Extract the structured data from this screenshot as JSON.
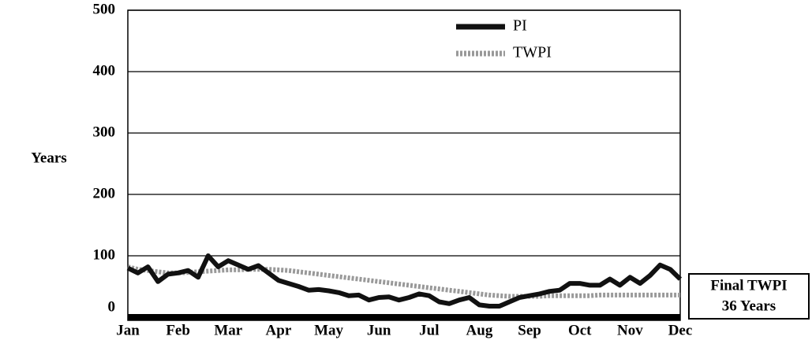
{
  "chart_data": {
    "type": "line",
    "ylabel": "Years",
    "x": [
      0,
      0.2,
      0.4,
      0.6,
      0.8,
      1,
      1.2,
      1.4,
      1.6,
      1.8,
      2,
      2.2,
      2.4,
      2.6,
      2.8,
      3,
      3.2,
      3.4,
      3.6,
      3.8,
      4,
      4.2,
      4.4,
      4.6,
      4.8,
      5,
      5.2,
      5.4,
      5.6,
      5.8,
      6,
      6.2,
      6.4,
      6.6,
      6.8,
      7,
      7.2,
      7.4,
      7.6,
      7.8,
      8,
      8.2,
      8.4,
      8.6,
      8.8,
      9,
      9.2,
      9.4,
      9.6,
      9.8,
      10,
      10.2,
      10.4,
      10.6,
      10.8,
      11
    ],
    "xlim": [
      0,
      11
    ],
    "xticks": [
      {
        "value": 0,
        "label": "Jan"
      },
      {
        "value": 1,
        "label": "Feb"
      },
      {
        "value": 2,
        "label": "Mar"
      },
      {
        "value": 3,
        "label": "Apr"
      },
      {
        "value": 4,
        "label": "May"
      },
      {
        "value": 5,
        "label": "Jun"
      },
      {
        "value": 6,
        "label": "Jul"
      },
      {
        "value": 7,
        "label": "Aug"
      },
      {
        "value": 8,
        "label": "Sep"
      },
      {
        "value": 9,
        "label": "Oct"
      },
      {
        "value": 10,
        "label": "Nov"
      },
      {
        "value": 11,
        "label": "Dec"
      }
    ],
    "ylim": [
      0,
      500
    ],
    "yticks": [
      0,
      100,
      200,
      300,
      400,
      500
    ],
    "grid": true,
    "legend": "upper right",
    "series": [
      {
        "name": "PI",
        "color": "#111111",
        "values": [
          80,
          72,
          82,
          58,
          70,
          72,
          76,
          65,
          100,
          82,
          92,
          85,
          78,
          84,
          72,
          60,
          55,
          50,
          44,
          45,
          43,
          40,
          35,
          36,
          28,
          32,
          33,
          28,
          32,
          38,
          35,
          25,
          22,
          28,
          32,
          20,
          18,
          18,
          25,
          32,
          35,
          38,
          42,
          44,
          55,
          55,
          52,
          52,
          62,
          52,
          65,
          55,
          68,
          85,
          78,
          62
        ]
      },
      {
        "name": "TWPI",
        "color": "#999999",
        "values": [
          82,
          78,
          76,
          74,
          72,
          72,
          73,
          74,
          75,
          76,
          77,
          77,
          78,
          78,
          78,
          77,
          76,
          74,
          72,
          70,
          68,
          66,
          64,
          62,
          60,
          58,
          56,
          54,
          52,
          50,
          48,
          46,
          44,
          42,
          40,
          38,
          36,
          35,
          34,
          34,
          34,
          34,
          35,
          35,
          35,
          35,
          35,
          36,
          36,
          36,
          36,
          36,
          36,
          36,
          36,
          36
        ]
      }
    ],
    "annotation": [
      "Final TWPI",
      "36 Years"
    ]
  }
}
